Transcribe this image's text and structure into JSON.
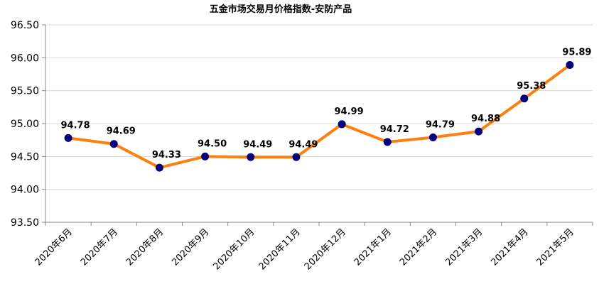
{
  "chart_data": {
    "type": "line",
    "title": "五金市场交易月价格指数-安防产品",
    "xlabel": "",
    "ylabel": "",
    "categories": [
      "2020年6月",
      "2020年7月",
      "2020年8月",
      "2020年9月",
      "2020年10月",
      "2020年11月",
      "2020年12月",
      "2021年1月",
      "2021年2月",
      "2021年3月",
      "2021年4月",
      "2021年5月"
    ],
    "series": [
      {
        "values": [
          94.78,
          94.69,
          94.33,
          94.5,
          94.49,
          94.49,
          94.99,
          94.72,
          94.79,
          94.88,
          95.38,
          95.89
        ]
      }
    ],
    "data_labels": [
      "94.78",
      "94.69",
      "94.33",
      "94.50",
      "94.49",
      "94.49",
      "94.99",
      "94.72",
      "94.79",
      "94.88",
      "95.38",
      "95.89"
    ],
    "ylim": [
      93.5,
      96.5
    ],
    "yticks": [
      "93.50",
      "94.00",
      "94.50",
      "95.00",
      "95.50",
      "96.00",
      "96.50"
    ],
    "grid": true,
    "legend": "none",
    "colors": {
      "line": "#ff7f0e",
      "marker": "#00007f"
    }
  }
}
